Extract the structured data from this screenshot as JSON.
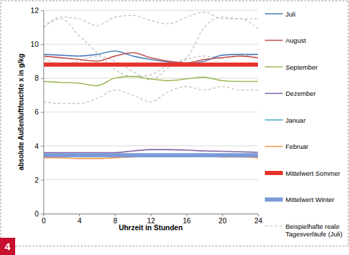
{
  "chart_data": {
    "type": "line",
    "x_label": "Uhrzeit in Stunden",
    "y_label": "absolute Außenluftfeuchte x in g/kg",
    "annotations": [
      "4"
    ],
    "x": [
      0,
      2,
      4,
      6,
      8,
      10,
      12,
      14,
      16,
      18,
      20,
      22,
      24
    ],
    "xlim": [
      0,
      24
    ],
    "xticks": [
      0,
      4,
      8,
      12,
      16,
      20,
      24
    ],
    "ylim": [
      0,
      12
    ],
    "yticks": [
      0,
      2,
      4,
      6,
      8,
      10,
      12
    ],
    "grid": true,
    "legend": "right",
    "series": [
      {
        "name": "Juli",
        "color": "#4f81bd",
        "line_style": "solid",
        "values": [
          9.4,
          9.35,
          9.3,
          9.4,
          9.6,
          9.3,
          9.1,
          8.95,
          8.85,
          9.0,
          9.35,
          9.4,
          9.4
        ]
      },
      {
        "name": "August",
        "color": "#c0504d",
        "line_style": "solid",
        "values": [
          9.3,
          9.2,
          9.1,
          9.0,
          9.3,
          9.5,
          9.2,
          9.0,
          8.9,
          9.1,
          9.2,
          9.3,
          9.2
        ]
      },
      {
        "name": "September",
        "color": "#9bbb59",
        "line_style": "solid",
        "values": [
          7.8,
          7.75,
          7.7,
          7.55,
          8.0,
          8.1,
          7.95,
          7.85,
          7.95,
          8.05,
          7.85,
          7.8,
          7.8
        ]
      },
      {
        "name": "Dezember",
        "color": "#8064a2",
        "line_style": "solid",
        "values": [
          3.6,
          3.6,
          3.6,
          3.6,
          3.6,
          3.7,
          3.78,
          3.78,
          3.75,
          3.7,
          3.68,
          3.65,
          3.62
        ]
      },
      {
        "name": "Januar",
        "color": "#4bacc6",
        "line_style": "solid",
        "values": [
          3.5,
          3.5,
          3.5,
          3.5,
          3.45,
          3.5,
          3.5,
          3.5,
          3.5,
          3.5,
          3.5,
          3.5,
          3.5
        ]
      },
      {
        "name": "Februar",
        "color": "#f79646",
        "line_style": "solid",
        "values": [
          3.3,
          3.3,
          3.25,
          3.25,
          3.3,
          3.35,
          3.4,
          3.4,
          3.4,
          3.4,
          3.35,
          3.35,
          3.3
        ]
      },
      {
        "name": "Mittelwert Sommer",
        "color": "#e8322a",
        "line_style": "thick",
        "values": [
          8.8,
          8.8,
          8.8,
          8.8,
          8.8,
          8.8,
          8.8,
          8.8,
          8.8,
          8.8,
          8.8,
          8.8,
          8.8
        ]
      },
      {
        "name": "Mittelwert Winter",
        "color": "#7a9ad8",
        "line_style": "thick",
        "values": [
          3.45,
          3.45,
          3.45,
          3.45,
          3.45,
          3.45,
          3.45,
          3.45,
          3.45,
          3.45,
          3.45,
          3.45,
          3.45
        ]
      },
      {
        "name": "Beispielhafte reale Tagesverläufe (Juli)",
        "color": "#bfbfbf",
        "line_style": "dashed",
        "values": [
          11.0,
          11.6,
          11.5,
          11.1,
          11.6,
          11.7,
          11.4,
          11.2,
          11.6,
          11.9,
          11.5,
          11.5,
          10.9
        ]
      },
      {
        "color": "#bfbfbf",
        "line_style": "dashed",
        "values": [
          11.0,
          11.5,
          10.5,
          9.5,
          8.5,
          8.1,
          8.2,
          8.8,
          9.2,
          11.0,
          11.6,
          11.5,
          11.5
        ]
      },
      {
        "color": "#bfbfbf",
        "line_style": "dashed",
        "values": [
          6.6,
          6.5,
          6.5,
          6.8,
          7.3,
          7.0,
          6.6,
          7.2,
          7.5,
          7.3,
          7.5,
          7.3,
          7.3
        ]
      },
      {
        "color": "#bfbfbf",
        "line_style": "dashed",
        "values": [
          9.2,
          8.8,
          9.0,
          9.3,
          9.0,
          8.4,
          7.9,
          8.6,
          9.1,
          9.3,
          9.2,
          9.3,
          9.4
        ]
      }
    ]
  }
}
